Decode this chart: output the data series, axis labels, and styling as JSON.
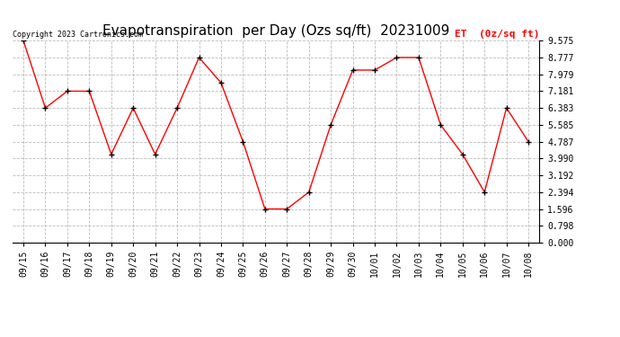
{
  "title": "Evapotranspiration  per Day (Ozs sq/ft)  20231009",
  "legend_label": "ET  (0z/sq ft)",
  "copyright_text": "Copyright 2023 Cartronics.com",
  "x_labels": [
    "09/15",
    "09/16",
    "09/17",
    "09/18",
    "09/19",
    "09/20",
    "09/21",
    "09/22",
    "09/23",
    "09/24",
    "09/25",
    "09/26",
    "09/27",
    "09/28",
    "09/29",
    "09/30",
    "10/01",
    "10/02",
    "10/03",
    "10/04",
    "10/05",
    "10/06",
    "10/07",
    "10/08"
  ],
  "y_values": [
    9.575,
    6.383,
    7.181,
    7.181,
    4.189,
    6.383,
    4.189,
    6.383,
    8.777,
    7.579,
    4.787,
    1.596,
    1.596,
    2.394,
    5.585,
    8.18,
    8.18,
    8.777,
    8.777,
    5.585,
    4.189,
    2.394,
    6.383,
    4.787
  ],
  "y_ticks": [
    0.0,
    0.798,
    1.596,
    2.394,
    3.192,
    3.99,
    4.787,
    5.585,
    6.383,
    7.181,
    7.979,
    8.777,
    9.575
  ],
  "y_min": 0.0,
  "y_max": 9.575,
  "line_color": "red",
  "marker_color": "black",
  "marker": "+",
  "legend_color": "red",
  "copyright_color": "black",
  "bg_color": "white",
  "grid_color": "#aaaaaa",
  "title_fontsize": 11,
  "legend_fontsize": 8,
  "copyright_fontsize": 6,
  "tick_fontsize": 7
}
